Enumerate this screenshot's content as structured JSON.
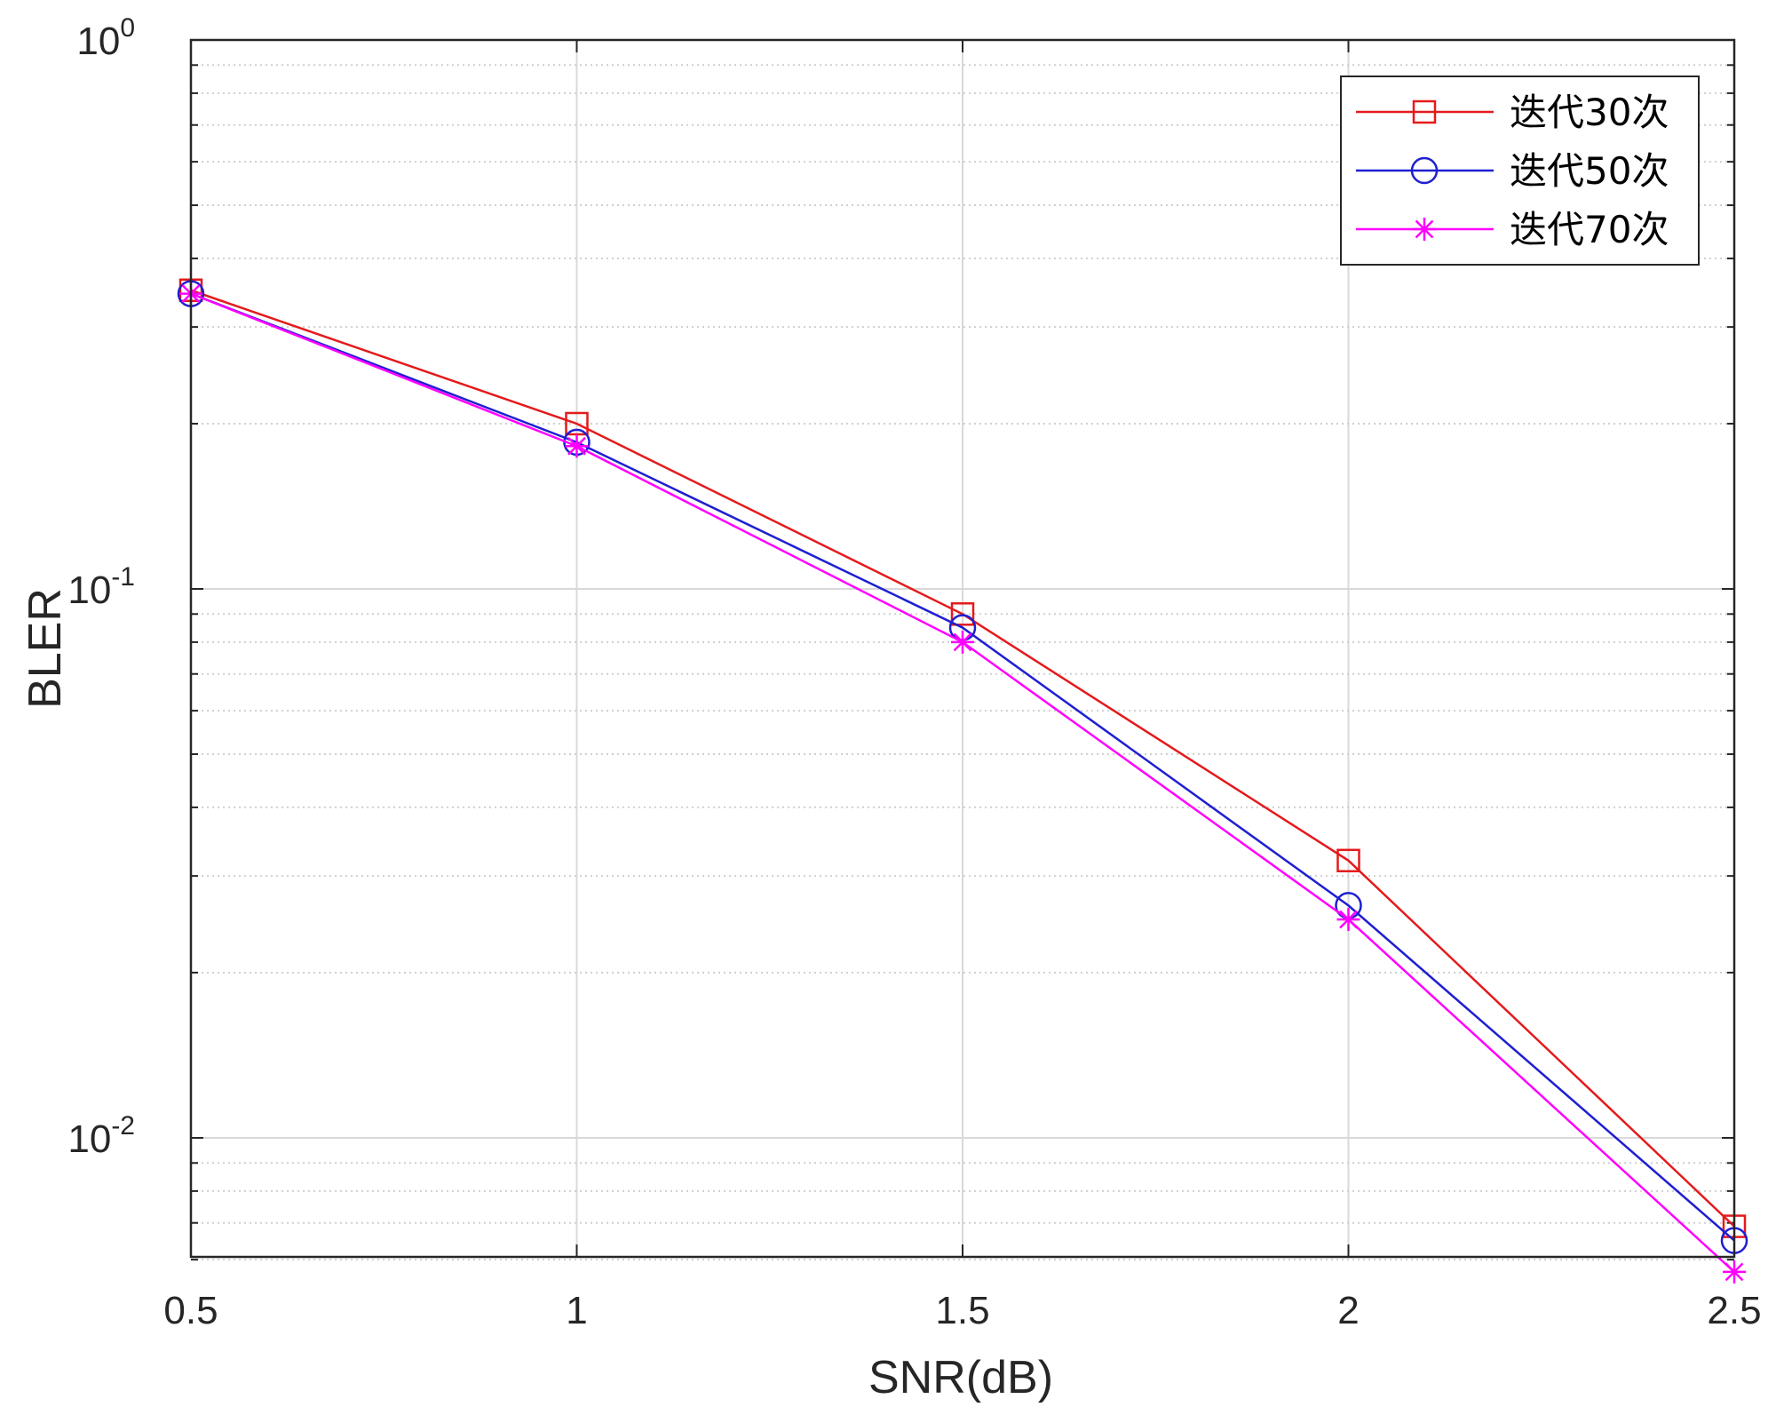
{
  "chart_data": {
    "type": "line",
    "title": "",
    "xlabel": "SNR(dB)",
    "ylabel": "BLER",
    "yscale": "log",
    "xlim": [
      0.5,
      2.5
    ],
    "ylim": [
      0.006,
      1
    ],
    "grid": true,
    "legend_position": "top-right",
    "x": [
      0.5,
      1,
      1.5,
      2,
      2.5
    ],
    "x_tick_labels": [
      "0.5",
      "1",
      "1.5",
      "2",
      "2.5"
    ],
    "y_ticks": [
      {
        "base": "10",
        "exp": "0",
        "value": 1
      },
      {
        "base": "10",
        "exp": "-1",
        "value": 0.1
      },
      {
        "base": "10",
        "exp": "-2",
        "value": 0.01
      }
    ],
    "series": [
      {
        "name": "迭代30次",
        "color": "#e41a1c",
        "marker": "square",
        "values": [
          0.35,
          0.2,
          0.09,
          0.032,
          0.0069
        ]
      },
      {
        "name": "迭代50次",
        "color": "#1f1fd1",
        "marker": "circle",
        "values": [
          0.345,
          0.185,
          0.085,
          0.0265,
          0.0065
        ]
      },
      {
        "name": "迭代70次",
        "color": "#ff00ff",
        "marker": "asterisk",
        "values": [
          0.345,
          0.182,
          0.08,
          0.025,
          0.0057
        ]
      }
    ]
  }
}
